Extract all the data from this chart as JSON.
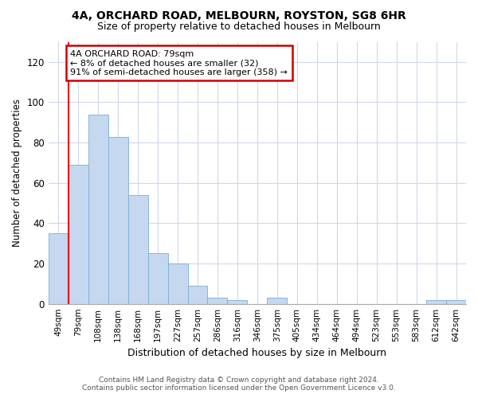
{
  "title1": "4A, ORCHARD ROAD, MELBOURN, ROYSTON, SG8 6HR",
  "title2": "Size of property relative to detached houses in Melbourn",
  "xlabel": "Distribution of detached houses by size in Melbourn",
  "ylabel": "Number of detached properties",
  "categories": [
    "49sqm",
    "79sqm",
    "108sqm",
    "138sqm",
    "168sqm",
    "197sqm",
    "227sqm",
    "257sqm",
    "286sqm",
    "316sqm",
    "346sqm",
    "375sqm",
    "405sqm",
    "434sqm",
    "464sqm",
    "494sqm",
    "523sqm",
    "553sqm",
    "583sqm",
    "612sqm",
    "642sqm"
  ],
  "values": [
    35,
    69,
    94,
    83,
    54,
    25,
    20,
    9,
    3,
    2,
    0,
    3,
    0,
    0,
    0,
    0,
    0,
    0,
    0,
    2,
    2
  ],
  "bar_color": "#c5d8f0",
  "bar_edge_color": "#7aafd4",
  "highlight_color": "#ff0000",
  "annotation_title": "4A ORCHARD ROAD: 79sqm",
  "annotation_line1": "← 8% of detached houses are smaller (32)",
  "annotation_line2": "91% of semi-detached houses are larger (358) →",
  "annotation_box_color": "#ffffff",
  "annotation_box_edge": "#cc0000",
  "ylim": [
    0,
    130
  ],
  "yticks": [
    0,
    20,
    40,
    60,
    80,
    100,
    120
  ],
  "footer1": "Contains HM Land Registry data © Crown copyright and database right 2024.",
  "footer2": "Contains public sector information licensed under the Open Government Licence v3.0.",
  "bg_color": "#ffffff",
  "plot_bg_color": "#ffffff",
  "grid_color": "#d0d8e8"
}
